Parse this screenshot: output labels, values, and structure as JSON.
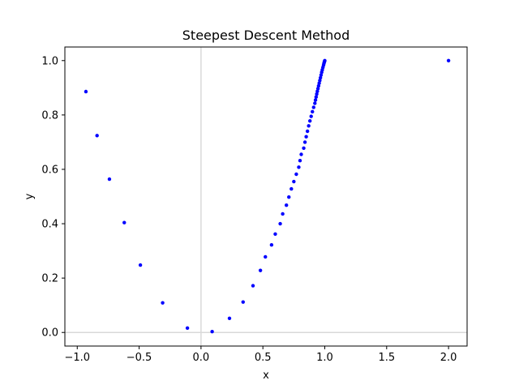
{
  "chart_data": {
    "type": "scatter",
    "title": "Steepest Descent Method",
    "xlabel": "x",
    "ylabel": "y",
    "xlim": [
      -1.1,
      2.15
    ],
    "ylim": [
      -0.05,
      1.05
    ],
    "xticks": [
      -1.0,
      -0.5,
      0.0,
      0.5,
      1.0,
      1.5,
      2.0
    ],
    "xtick_labels": [
      "−1.0",
      "−0.5",
      "0.0",
      "0.5",
      "1.0",
      "1.5",
      "2.0"
    ],
    "yticks": [
      0.0,
      0.2,
      0.4,
      0.6,
      0.8,
      1.0
    ],
    "ytick_labels": [
      "0.0",
      "0.2",
      "0.4",
      "0.6",
      "0.8",
      "1.0"
    ],
    "grid": false,
    "reference_lines": {
      "x": 0,
      "y": 0,
      "color": "#d9d9d9"
    },
    "marker_color": "#0000ff",
    "x": [
      2.0,
      -0.93,
      -0.84,
      -0.74,
      -0.62,
      -0.49,
      -0.31,
      -0.11,
      0.09,
      0.23,
      0.34,
      0.42,
      0.48,
      0.52,
      0.57,
      0.6,
      0.64,
      0.66,
      0.69,
      0.71,
      0.73,
      0.75,
      0.77,
      0.79,
      0.8,
      0.81,
      0.83,
      0.84,
      0.85,
      0.86,
      0.87,
      0.88,
      0.89,
      0.9,
      0.91,
      0.92,
      0.925,
      0.93,
      0.935,
      0.94,
      0.945,
      0.95,
      0.955,
      0.96,
      0.965,
      0.97,
      0.975,
      0.98,
      0.985,
      0.99,
      0.993,
      0.996,
      0.998,
      1.0
    ],
    "y": [
      1.0,
      0.886,
      0.724,
      0.564,
      0.404,
      0.248,
      0.109,
      0.016,
      0.003,
      0.052,
      0.112,
      0.172,
      0.228,
      0.278,
      0.322,
      0.362,
      0.4,
      0.436,
      0.468,
      0.498,
      0.528,
      0.555,
      0.582,
      0.608,
      0.632,
      0.655,
      0.678,
      0.7,
      0.72,
      0.74,
      0.76,
      0.778,
      0.795,
      0.812,
      0.828,
      0.843,
      0.855,
      0.866,
      0.877,
      0.887,
      0.897,
      0.907,
      0.917,
      0.927,
      0.937,
      0.947,
      0.957,
      0.966,
      0.975,
      0.983,
      0.989,
      0.994,
      0.997,
      1.0
    ]
  }
}
